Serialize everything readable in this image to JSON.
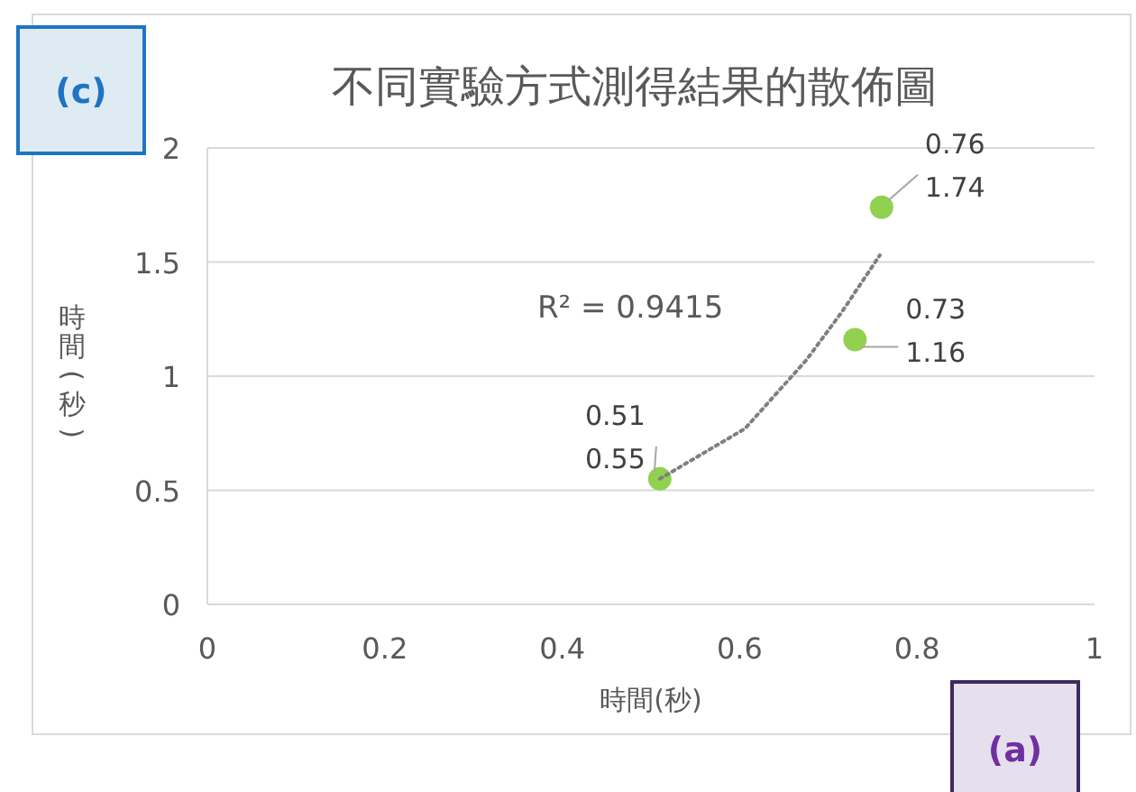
{
  "chart_data": {
    "type": "scatter",
    "title": "不同實驗方式測得結果的散佈圖",
    "xlabel": "時間(秒)",
    "ylabel": "時間(秒)",
    "xlim": [
      0,
      1
    ],
    "xticks": [
      0,
      0.2,
      0.4,
      0.6,
      0.8,
      1
    ],
    "ylim": [
      0,
      2
    ],
    "yticks": [
      0,
      0.5,
      1,
      1.5,
      2
    ],
    "grid": "y",
    "series": [
      {
        "type": "scatter",
        "color": "#92d050",
        "marker": "circle",
        "x": [
          0.51,
          0.73,
          0.76
        ],
        "values": [
          0.55,
          1.16,
          1.74
        ],
        "value_labels": [
          "0.51\n0.55",
          "0.73\n1.16",
          "0.76\n1.74"
        ]
      },
      {
        "type": "line",
        "color": "#7f7f7f",
        "line_style": "dotted",
        "marker": "none",
        "x": [
          0.51,
          0.606,
          0.675,
          0.715,
          0.758
        ],
        "values": [
          0.55,
          0.77,
          1.07,
          1.28,
          1.53
        ]
      }
    ],
    "annotations": [
      "R² = 0.9415",
      "(c)",
      "(a)"
    ]
  }
}
